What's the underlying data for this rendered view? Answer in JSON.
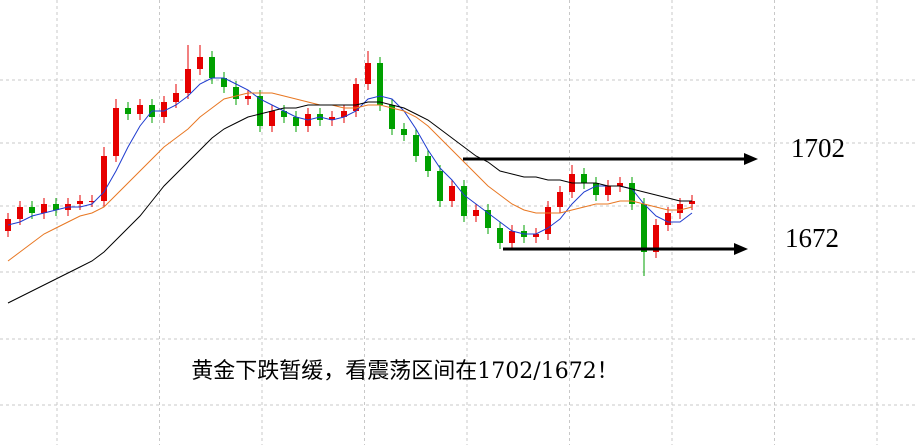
{
  "chart_data": {
    "type": "candlestick",
    "caption": "黄金下跌暂缓，看震荡区间在1702/1672！",
    "ylim": [
      1650,
      1755
    ],
    "grid": true,
    "up_color": "#e60000",
    "down_color": "#00a000",
    "open": [
      1678,
      1682,
      1686,
      1684,
      1687,
      1685,
      1687,
      1688,
      1688,
      1703,
      1719,
      1717,
      1720,
      1716,
      1721,
      1724,
      1732,
      1736,
      1729,
      1726,
      1722,
      1723,
      1713,
      1718,
      1716,
      1713,
      1717,
      1715,
      1716,
      1718,
      1727,
      1734,
      1720,
      1712,
      1710,
      1703,
      1698,
      1688,
      1693,
      1683,
      1685,
      1679,
      1674,
      1678,
      1676,
      1677,
      1686,
      1691,
      1697,
      1694,
      1690,
      1693,
      1694,
      1687,
      1671,
      1680,
      1684,
      1687
    ],
    "high": [
      1684,
      1688,
      1688,
      1689,
      1689,
      1689,
      1690,
      1690,
      1706,
      1722,
      1721,
      1722,
      1722,
      1723,
      1727,
      1740,
      1740,
      1738,
      1731,
      1728,
      1725,
      1725,
      1720,
      1720,
      1718,
      1719,
      1719,
      1718,
      1720,
      1729,
      1738,
      1736,
      1722,
      1714,
      1712,
      1705,
      1700,
      1695,
      1695,
      1687,
      1687,
      1681,
      1680,
      1680,
      1679,
      1688,
      1693,
      1700,
      1699,
      1696,
      1695,
      1696,
      1696,
      1689,
      1682,
      1686,
      1689,
      1690
    ],
    "low": [
      1676,
      1680,
      1682,
      1682,
      1683,
      1683,
      1685,
      1686,
      1686,
      1701,
      1715,
      1715,
      1714,
      1714,
      1719,
      1722,
      1730,
      1727,
      1724,
      1720,
      1720,
      1711,
      1711,
      1714,
      1711,
      1711,
      1713,
      1713,
      1714,
      1716,
      1725,
      1718,
      1710,
      1708,
      1701,
      1696,
      1686,
      1686,
      1681,
      1681,
      1677,
      1672,
      1672,
      1674,
      1674,
      1675,
      1684,
      1689,
      1692,
      1688,
      1688,
      1691,
      1685,
      1663,
      1669,
      1678,
      1682,
      1685
    ],
    "close": [
      1682,
      1686,
      1684,
      1687,
      1685,
      1687,
      1688,
      1688,
      1703,
      1719,
      1717,
      1720,
      1716,
      1721,
      1724,
      1732,
      1736,
      1729,
      1726,
      1722,
      1723,
      1713,
      1718,
      1716,
      1713,
      1717,
      1715,
      1716,
      1718,
      1727,
      1734,
      1720,
      1712,
      1710,
      1703,
      1698,
      1688,
      1693,
      1683,
      1685,
      1679,
      1674,
      1678,
      1676,
      1677,
      1686,
      1691,
      1697,
      1694,
      1690,
      1693,
      1694,
      1687,
      1671,
      1680,
      1684,
      1687,
      1688
    ],
    "series": [
      {
        "color": "#1f3ccf",
        "values": [
          1680,
          1681,
          1683,
          1684,
          1685,
          1686,
          1686,
          1687,
          1691,
          1698,
          1706,
          1713,
          1718,
          1718,
          1720,
          1723,
          1727,
          1729,
          1729,
          1727,
          1725,
          1722,
          1720,
          1718,
          1716,
          1715,
          1716,
          1715,
          1716,
          1718,
          1722,
          1723,
          1722,
          1718,
          1712,
          1705,
          1699,
          1695,
          1690,
          1687,
          1684,
          1681,
          1678,
          1677,
          1677,
          1679,
          1682,
          1687,
          1691,
          1693,
          1693,
          1693,
          1692,
          1687,
          1683,
          1681,
          1681,
          1684
        ]
      },
      {
        "color": "#e87722",
        "values": [
          1668,
          1671,
          1674,
          1677,
          1679,
          1681,
          1683,
          1684,
          1686,
          1690,
          1694,
          1698,
          1702,
          1706,
          1709,
          1712,
          1716,
          1719,
          1722,
          1723,
          1724,
          1724,
          1724,
          1723,
          1722,
          1721,
          1720,
          1720,
          1719,
          1719,
          1720,
          1720,
          1719,
          1718,
          1716,
          1713,
          1709,
          1705,
          1701,
          1697,
          1693,
          1690,
          1687,
          1685,
          1684,
          1684,
          1684,
          1685,
          1686,
          1687,
          1687,
          1688,
          1688,
          1687,
          1686,
          1685,
          1685,
          1686
        ]
      },
      {
        "color": "#000000",
        "values": [
          1654,
          1656,
          1658,
          1660,
          1662,
          1664,
          1666,
          1668,
          1671,
          1675,
          1679,
          1683,
          1688,
          1693,
          1697,
          1701,
          1705,
          1709,
          1712,
          1714,
          1716,
          1717,
          1718,
          1719,
          1719,
          1720,
          1720,
          1720,
          1720,
          1720,
          1721,
          1721,
          1720,
          1719,
          1717,
          1715,
          1712,
          1709,
          1706,
          1703,
          1701,
          1698,
          1697,
          1696,
          1696,
          1695,
          1695,
          1694,
          1694,
          1694,
          1693,
          1693,
          1692,
          1691,
          1690,
          1689,
          1688,
          1688
        ]
      }
    ],
    "levels": [
      1702,
      1672
    ]
  }
}
